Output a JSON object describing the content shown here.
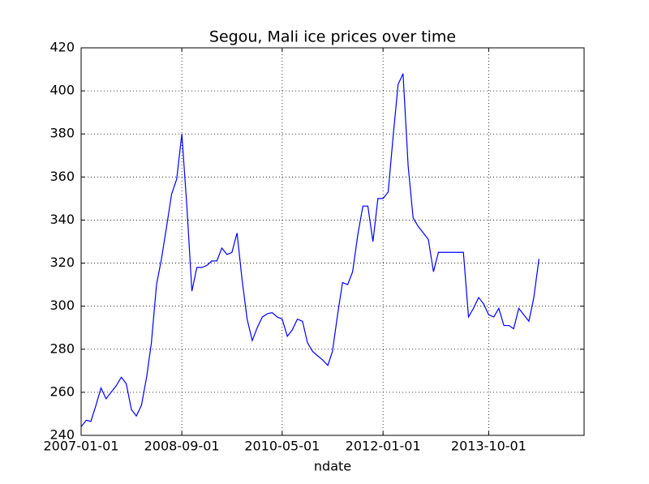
{
  "chart_data": {
    "type": "line",
    "title": "Segou, Mali ice prices over time",
    "xlabel": "ndate",
    "x": [
      "2007-01-01",
      "2007-02-01",
      "2007-03-01",
      "2007-04-01",
      "2007-05-01",
      "2007-06-01",
      "2007-07-01",
      "2007-08-01",
      "2007-09-01",
      "2007-10-01",
      "2007-11-01",
      "2007-12-01",
      "2008-01-01",
      "2008-02-01",
      "2008-03-01",
      "2008-04-01",
      "2008-05-01",
      "2008-06-01",
      "2008-07-01",
      "2008-08-01",
      "2008-09-01",
      "2008-10-01",
      "2008-11-01",
      "2008-12-01",
      "2009-01-01",
      "2009-02-01",
      "2009-03-01",
      "2009-04-01",
      "2009-05-01",
      "2009-06-01",
      "2009-07-01",
      "2009-08-01",
      "2009-09-01",
      "2009-10-01",
      "2009-11-01",
      "2009-12-01",
      "2010-01-01",
      "2010-02-01",
      "2010-03-01",
      "2010-04-01",
      "2010-05-01",
      "2010-06-01",
      "2010-07-01",
      "2010-08-01",
      "2010-09-01",
      "2010-10-01",
      "2010-11-01",
      "2010-12-01",
      "2011-01-01",
      "2011-02-01",
      "2011-03-01",
      "2011-04-01",
      "2011-05-01",
      "2011-06-01",
      "2011-07-01",
      "2011-08-01",
      "2011-09-01",
      "2011-10-01",
      "2011-11-01",
      "2011-12-01",
      "2012-01-01",
      "2012-02-01",
      "2012-03-01",
      "2012-04-01",
      "2012-05-01",
      "2012-06-01",
      "2012-07-01",
      "2012-08-01",
      "2012-09-01",
      "2012-10-01",
      "2012-11-01",
      "2012-12-01",
      "2013-01-01",
      "2013-02-01",
      "2013-03-01",
      "2013-04-01",
      "2013-05-01",
      "2013-06-01",
      "2013-07-01",
      "2013-08-01",
      "2013-09-01",
      "2013-10-01",
      "2013-11-01",
      "2013-12-01",
      "2014-01-01",
      "2014-02-01",
      "2014-03-01",
      "2014-04-01",
      "2014-05-01",
      "2014-06-01",
      "2014-07-01",
      "2014-08-01"
    ],
    "values": [
      244,
      247,
      246.5,
      254,
      262,
      257,
      260,
      263,
      267,
      264,
      252,
      249,
      254,
      267,
      283,
      310,
      322,
      337,
      352,
      359,
      380,
      347,
      307,
      318,
      318,
      319,
      321,
      321,
      327,
      324,
      325,
      334,
      312,
      294,
      284,
      290,
      295,
      296.5,
      297,
      295,
      294,
      286,
      289,
      294,
      293,
      283,
      279,
      277,
      275,
      272.5,
      279,
      296,
      311,
      310,
      316,
      333,
      346.5,
      346.5,
      330,
      350,
      350,
      353,
      378,
      403,
      408,
      365,
      341,
      337,
      334,
      331,
      316,
      325,
      325,
      325,
      325,
      325,
      325,
      295,
      299,
      304,
      301,
      296,
      295,
      299,
      291,
      291,
      289.5,
      299,
      296,
      293,
      304,
      322
    ],
    "color": "#0000ff",
    "xlim": [
      "2007-01-01",
      "2015-05-01"
    ],
    "xticks": [
      "2007-01-01",
      "2008-09-01",
      "2010-05-01",
      "2012-01-01",
      "2013-10-01"
    ],
    "ylim": [
      240,
      420
    ],
    "yticks": [
      240,
      260,
      280,
      300,
      320,
      340,
      360,
      380,
      400,
      420
    ],
    "grid": true
  }
}
